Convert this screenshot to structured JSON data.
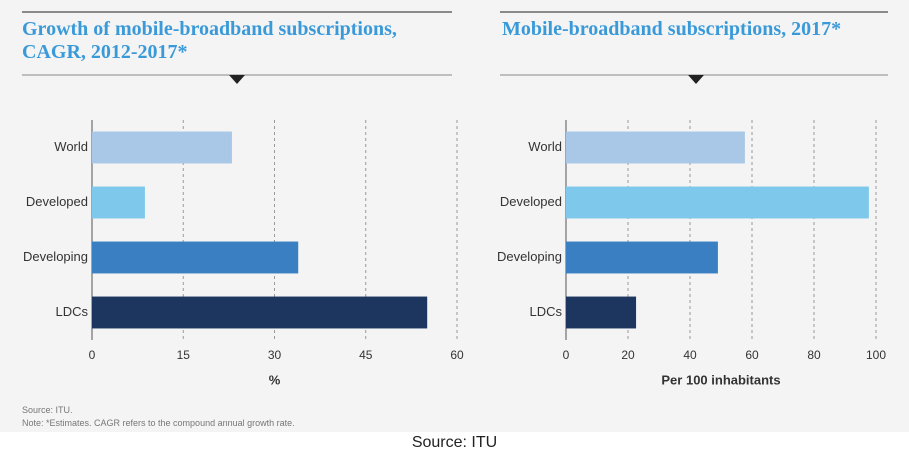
{
  "chart_data": [
    {
      "type": "bar",
      "orientation": "horizontal",
      "title": "Growth of mobile-broadband subscriptions, CAGR, 2012-2017*",
      "xlabel": "%",
      "categories": [
        "World",
        "Developed",
        "Developing",
        "LDCs"
      ],
      "values": [
        23.0,
        8.7,
        33.9,
        55.1
      ],
      "colors": [
        "#a9c7e6",
        "#7ec8ec",
        "#3a7fc2",
        "#1c3660"
      ],
      "xlim": [
        0,
        60
      ],
      "xticks": [
        0,
        15,
        30,
        45,
        60
      ],
      "grid": true
    },
    {
      "type": "bar",
      "orientation": "horizontal",
      "title": "Mobile-broadband subscriptions, 2017*",
      "xlabel": "Per 100 inhabitants",
      "categories": [
        "World",
        "Developed",
        "Developing",
        "LDCs"
      ],
      "values": [
        57.7,
        97.7,
        49.0,
        22.6
      ],
      "colors": [
        "#a9c7e6",
        "#7ec8ec",
        "#3a7fc2",
        "#1c3660"
      ],
      "xlim": [
        0,
        100
      ],
      "xticks": [
        0,
        20,
        40,
        60,
        80,
        100
      ],
      "grid": true
    }
  ],
  "source": "Source: ITU.",
  "note": "Note: *Estimates. CAGR refers to the compound annual growth rate.",
  "caption": "Source: ITU"
}
